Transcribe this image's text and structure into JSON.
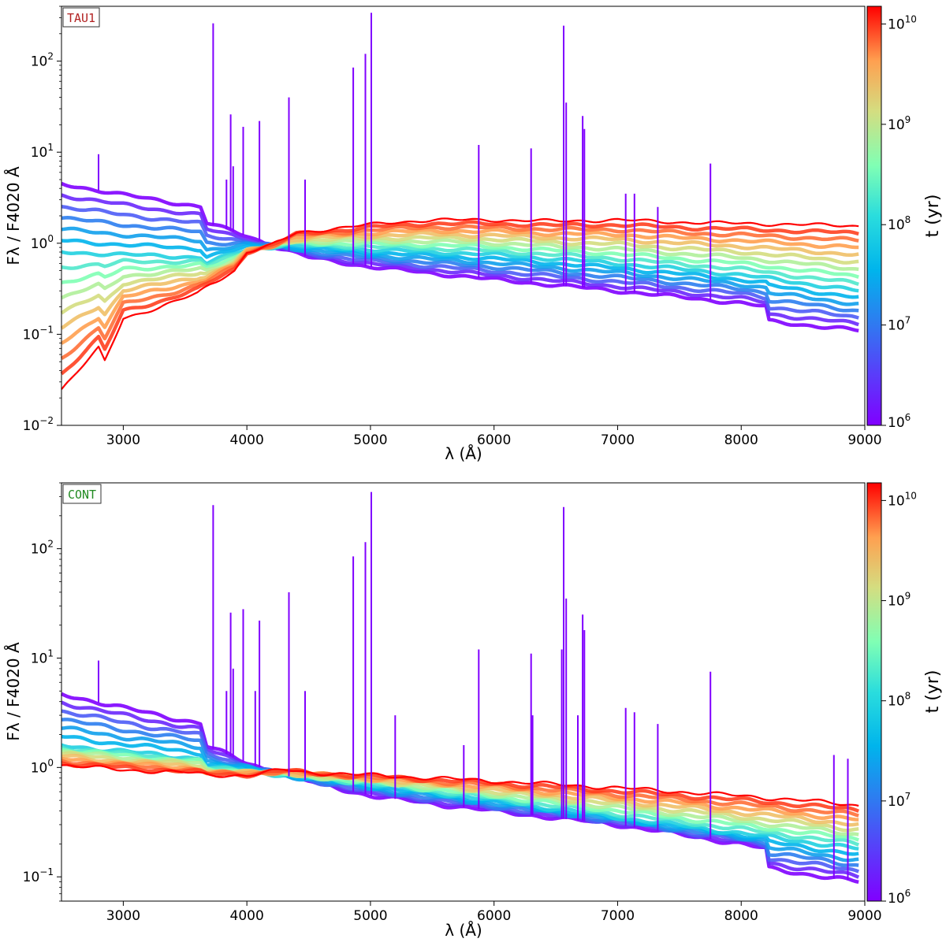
{
  "chart_data": [
    {
      "type": "line",
      "panel_label": "TAU1",
      "panel_label_color": "#b22222",
      "ylabel": "Fλ / F4020 Å",
      "xlabel": "λ (Å)",
      "xlim": [
        2500,
        9000
      ],
      "ylim": [
        0.01,
        400
      ],
      "yscale": "log",
      "x_ticks": [
        "3000",
        "4000",
        "5000",
        "6000",
        "7000",
        "8000",
        "9000"
      ],
      "y_ticks": [
        {
          "base": "10",
          "exp": "−2"
        },
        {
          "base": "10",
          "exp": "−1"
        },
        {
          "base": "10",
          "exp": "0"
        },
        {
          "base": "10",
          "exp": "1"
        },
        {
          "base": "10",
          "exp": "2"
        }
      ],
      "colorbar": {
        "label": "t (yr)",
        "range": [
          1000000,
          15000000000
        ],
        "ticks": [
          {
            "base": "10",
            "exp": "6"
          },
          {
            "base": "10",
            "exp": "7"
          },
          {
            "base": "10",
            "exp": "8"
          },
          {
            "base": "10",
            "exp": "9"
          },
          {
            "base": "10",
            "exp": "10"
          }
        ],
        "colormap": "rainbow"
      },
      "series": [
        {
          "name": "t=1e6 yr (youngest)",
          "color": "#8000ff",
          "x": [
            2500,
            3000,
            3640,
            3660,
            4000,
            4200,
            4500,
            5000,
            6000,
            7000,
            8000,
            8200,
            8210,
            8950
          ],
          "y": [
            4.5,
            3.4,
            2.5,
            1.7,
            1.2,
            0.95,
            0.7,
            0.55,
            0.4,
            0.3,
            0.22,
            0.2,
            0.14,
            0.11
          ]
        },
        {
          "name": "t=1e8 yr",
          "color": "#00b4ec",
          "x": [
            2500,
            3000,
            3640,
            3660,
            4000,
            4300,
            5000,
            6000,
            7000,
            8000,
            8950
          ],
          "y": [
            0.8,
            0.75,
            0.7,
            0.6,
            0.85,
            0.95,
            0.85,
            0.75,
            0.6,
            0.45,
            0.3
          ]
        },
        {
          "name": "t=1.3e10 yr (oldest)",
          "color": "#ff0000",
          "x": [
            2500,
            2800,
            2850,
            3000,
            3300,
            3600,
            3700,
            3900,
            4000,
            4200,
            4400,
            4600,
            5000,
            5200,
            5500,
            6000,
            6500,
            7000,
            7500,
            8000,
            8500,
            8950
          ],
          "y": [
            0.025,
            0.07,
            0.05,
            0.15,
            0.2,
            0.28,
            0.35,
            0.5,
            0.8,
            0.95,
            1.3,
            1.4,
            1.6,
            1.7,
            1.8,
            1.8,
            1.75,
            1.8,
            1.7,
            1.65,
            1.6,
            1.55
          ]
        }
      ],
      "emission_lines": [
        {
          "x": 2800,
          "peak": 9.5
        },
        {
          "x": 3727,
          "peak": 260
        },
        {
          "x": 3835,
          "peak": 5
        },
        {
          "x": 3869,
          "peak": 26
        },
        {
          "x": 3889,
          "peak": 7
        },
        {
          "x": 3970,
          "peak": 19
        },
        {
          "x": 4102,
          "peak": 22
        },
        {
          "x": 4340,
          "peak": 40
        },
        {
          "x": 4471,
          "peak": 5
        },
        {
          "x": 4861,
          "peak": 85
        },
        {
          "x": 4959,
          "peak": 120
        },
        {
          "x": 5007,
          "peak": 340
        },
        {
          "x": 5876,
          "peak": 12
        },
        {
          "x": 6300,
          "peak": 11
        },
        {
          "x": 6563,
          "peak": 245
        },
        {
          "x": 6584,
          "peak": 35
        },
        {
          "x": 6717,
          "peak": 25
        },
        {
          "x": 6731,
          "peak": 18
        },
        {
          "x": 7065,
          "peak": 3.5
        },
        {
          "x": 7136,
          "peak": 3.5
        },
        {
          "x": 7325,
          "peak": 2.5
        },
        {
          "x": 7751,
          "peak": 7.5
        }
      ]
    },
    {
      "type": "line",
      "panel_label": "CONT",
      "panel_label_color": "#228b22",
      "ylabel": "Fλ / F4020 Å",
      "xlabel": "λ (Å)",
      "xlim": [
        2500,
        9000
      ],
      "ylim": [
        0.06,
        400
      ],
      "yscale": "log",
      "x_ticks": [
        "3000",
        "4000",
        "5000",
        "6000",
        "7000",
        "8000",
        "9000"
      ],
      "y_ticks": [
        {
          "base": "10",
          "exp": "−1"
        },
        {
          "base": "10",
          "exp": "0"
        },
        {
          "base": "10",
          "exp": "1"
        },
        {
          "base": "10",
          "exp": "2"
        }
      ],
      "colorbar": {
        "label": "t (yr)",
        "range": [
          1000000,
          15000000000
        ],
        "ticks": [
          {
            "base": "10",
            "exp": "6"
          },
          {
            "base": "10",
            "exp": "7"
          },
          {
            "base": "10",
            "exp": "8"
          },
          {
            "base": "10",
            "exp": "9"
          },
          {
            "base": "10",
            "exp": "10"
          }
        ],
        "colormap": "rainbow"
      },
      "series": [
        {
          "name": "t=1e6 yr (youngest)",
          "color": "#8000ff",
          "x": [
            2500,
            3000,
            3640,
            3660,
            4000,
            4300,
            5000,
            6000,
            7000,
            8000,
            8200,
            8210,
            8950
          ],
          "y": [
            4.7,
            3.5,
            2.5,
            1.6,
            1.1,
            0.85,
            0.55,
            0.4,
            0.3,
            0.2,
            0.18,
            0.12,
            0.09
          ]
        },
        {
          "name": "t=1e8 yr",
          "color": "#00b4ec",
          "x": [
            2500,
            3000,
            3640,
            3660,
            4000,
            4300,
            5000,
            6000,
            7000,
            8000,
            8950
          ],
          "y": [
            1.6,
            1.4,
            1.2,
            1.0,
            0.95,
            0.85,
            0.7,
            0.5,
            0.35,
            0.25,
            0.18
          ]
        },
        {
          "name": "t=1.3e10 yr (oldest)",
          "color": "#ff0000",
          "x": [
            2500,
            3000,
            3500,
            3700,
            3900,
            4000,
            4300,
            4500,
            5000,
            5500,
            6000,
            6500,
            7000,
            7500,
            8000,
            8500,
            8950
          ],
          "y": [
            1.05,
            0.95,
            0.9,
            0.85,
            0.85,
            0.85,
            0.95,
            0.9,
            0.85,
            0.8,
            0.75,
            0.7,
            0.65,
            0.6,
            0.55,
            0.5,
            0.45
          ]
        }
      ],
      "emission_lines": [
        {
          "x": 2800,
          "peak": 9.5
        },
        {
          "x": 3727,
          "peak": 250
        },
        {
          "x": 3835,
          "peak": 5
        },
        {
          "x": 3869,
          "peak": 26
        },
        {
          "x": 3889,
          "peak": 8
        },
        {
          "x": 3970,
          "peak": 28
        },
        {
          "x": 4068,
          "peak": 5
        },
        {
          "x": 4102,
          "peak": 22
        },
        {
          "x": 4340,
          "peak": 40
        },
        {
          "x": 4471,
          "peak": 5
        },
        {
          "x": 4861,
          "peak": 85
        },
        {
          "x": 4959,
          "peak": 115
        },
        {
          "x": 5007,
          "peak": 330
        },
        {
          "x": 5200,
          "peak": 3
        },
        {
          "x": 5755,
          "peak": 1.6
        },
        {
          "x": 5876,
          "peak": 12
        },
        {
          "x": 6300,
          "peak": 11
        },
        {
          "x": 6312,
          "peak": 3
        },
        {
          "x": 6548,
          "peak": 12
        },
        {
          "x": 6563,
          "peak": 240
        },
        {
          "x": 6584,
          "peak": 35
        },
        {
          "x": 6678,
          "peak": 3
        },
        {
          "x": 6717,
          "peak": 25
        },
        {
          "x": 6731,
          "peak": 18
        },
        {
          "x": 7065,
          "peak": 3.5
        },
        {
          "x": 7136,
          "peak": 3.2
        },
        {
          "x": 7325,
          "peak": 2.5
        },
        {
          "x": 7751,
          "peak": 7.5
        },
        {
          "x": 8750,
          "peak": 1.3
        },
        {
          "x": 8863,
          "peak": 1.2
        }
      ]
    }
  ]
}
